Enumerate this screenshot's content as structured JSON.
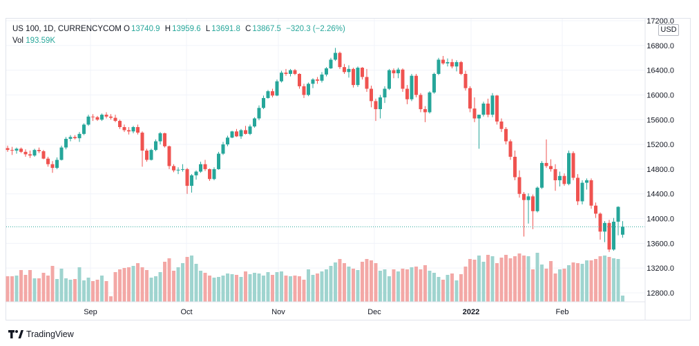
{
  "caption": "",
  "legend": {
    "symbol": "US 100, 1D, CURRENCYCOM",
    "open_label": "O",
    "open": "13740.9",
    "high_label": "H",
    "high": "13959.6",
    "low_label": "L",
    "low": "13691.8",
    "close_label": "C",
    "close": "13867.5",
    "change": "−320.3 (−2.26%)",
    "vol_label": "Vol",
    "vol": "193.59K"
  },
  "currency": "USD",
  "brand": "TradingView",
  "colors": {
    "up": "#26a69a",
    "down": "#ef5350",
    "vol_up": "#9fd4cf",
    "vol_down": "#f3a8a6"
  },
  "chart_data": {
    "type": "candlestick",
    "y_ticks": [
      "17200.0",
      "16800.0",
      "16400.0",
      "16000.0",
      "15600.0",
      "15200.0",
      "14800.0",
      "14400.0",
      "14000.0",
      "13600.0",
      "13200.0",
      "12800.0"
    ],
    "ylim": [
      12600,
      17300
    ],
    "x_labels": [
      "Sep",
      "Oct",
      "Nov",
      "Dec",
      "2022",
      "Feb"
    ],
    "last_close": 13867.5,
    "ohlc": [
      [
        15140,
        15180,
        15080,
        15110
      ],
      [
        15110,
        15160,
        15030,
        15100
      ],
      [
        15100,
        15150,
        15050,
        15130
      ],
      [
        15130,
        15150,
        15060,
        15080
      ],
      [
        15080,
        15120,
        15000,
        15040
      ],
      [
        15040,
        15100,
        14980,
        15020
      ],
      [
        15020,
        15130,
        15000,
        15110
      ],
      [
        15110,
        15150,
        15060,
        15090
      ],
      [
        15090,
        15110,
        14960,
        14970
      ],
      [
        14970,
        15000,
        14840,
        14880
      ],
      [
        14880,
        14930,
        14740,
        14820
      ],
      [
        14820,
        14990,
        14800,
        14950
      ],
      [
        14950,
        15180,
        14940,
        15150
      ],
      [
        15150,
        15320,
        15120,
        15290
      ],
      [
        15290,
        15350,
        15250,
        15320
      ],
      [
        15320,
        15350,
        15280,
        15300
      ],
      [
        15300,
        15400,
        15240,
        15370
      ],
      [
        15370,
        15540,
        15350,
        15520
      ],
      [
        15520,
        15680,
        15500,
        15650
      ],
      [
        15650,
        15690,
        15580,
        15640
      ],
      [
        15640,
        15660,
        15580,
        15600
      ],
      [
        15600,
        15700,
        15580,
        15680
      ],
      [
        15680,
        15720,
        15620,
        15650
      ],
      [
        15650,
        15690,
        15600,
        15630
      ],
      [
        15630,
        15680,
        15560,
        15580
      ],
      [
        15580,
        15600,
        15450,
        15480
      ],
      [
        15480,
        15520,
        15400,
        15430
      ],
      [
        15430,
        15480,
        15360,
        15410
      ],
      [
        15410,
        15500,
        15380,
        15480
      ],
      [
        15480,
        15520,
        15360,
        15390
      ],
      [
        15390,
        15410,
        14840,
        15100
      ],
      [
        15100,
        15130,
        14920,
        14950
      ],
      [
        14950,
        15130,
        14940,
        15110
      ],
      [
        15110,
        15280,
        15090,
        15250
      ],
      [
        15250,
        15400,
        15200,
        15380
      ],
      [
        15380,
        15390,
        15150,
        15170
      ],
      [
        15170,
        15180,
        14800,
        14850
      ],
      [
        14850,
        14880,
        14750,
        14780
      ],
      [
        14780,
        14830,
        14720,
        14790
      ],
      [
        14790,
        14880,
        14760,
        14800
      ],
      [
        14800,
        14820,
        14400,
        14530
      ],
      [
        14530,
        14720,
        14420,
        14700
      ],
      [
        14700,
        14780,
        14630,
        14760
      ],
      [
        14760,
        14920,
        14740,
        14880
      ],
      [
        14880,
        14950,
        14770,
        14800
      ],
      [
        14800,
        14810,
        14610,
        14640
      ],
      [
        14640,
        14830,
        14620,
        14800
      ],
      [
        14800,
        15080,
        14790,
        15050
      ],
      [
        15050,
        15240,
        15030,
        15200
      ],
      [
        15200,
        15340,
        15170,
        15310
      ],
      [
        15310,
        15420,
        15300,
        15410
      ],
      [
        15410,
        15450,
        15320,
        15330
      ],
      [
        15330,
        15450,
        15290,
        15430
      ],
      [
        15430,
        15500,
        15360,
        15370
      ],
      [
        15370,
        15520,
        15350,
        15490
      ],
      [
        15490,
        15640,
        15470,
        15620
      ],
      [
        15620,
        15830,
        15590,
        15790
      ],
      [
        15790,
        15990,
        15770,
        15950
      ],
      [
        15950,
        16080,
        15940,
        16060
      ],
      [
        16060,
        16100,
        15960,
        15990
      ],
      [
        15990,
        16250,
        15980,
        16220
      ],
      [
        16220,
        16390,
        16200,
        16360
      ],
      [
        16360,
        16420,
        16310,
        16340
      ],
      [
        16340,
        16420,
        16300,
        16400
      ],
      [
        16400,
        16420,
        16320,
        16340
      ],
      [
        16340,
        16350,
        16100,
        16140
      ],
      [
        16140,
        16180,
        15950,
        16000
      ],
      [
        16000,
        16200,
        15980,
        16180
      ],
      [
        16180,
        16270,
        16110,
        16250
      ],
      [
        16250,
        16290,
        16180,
        16230
      ],
      [
        16230,
        16370,
        16200,
        16330
      ],
      [
        16330,
        16450,
        16300,
        16430
      ],
      [
        16430,
        16600,
        16420,
        16570
      ],
      [
        16570,
        16760,
        16550,
        16680
      ],
      [
        16680,
        16700,
        16420,
        16450
      ],
      [
        16450,
        16500,
        16340,
        16370
      ],
      [
        16370,
        16480,
        16280,
        16420
      ],
      [
        16420,
        16440,
        16120,
        16160
      ],
      [
        16160,
        16460,
        16130,
        16440
      ],
      [
        16440,
        16450,
        16250,
        16290
      ],
      [
        16290,
        16420,
        16050,
        16100
      ],
      [
        16100,
        16150,
        15800,
        15900
      ],
      [
        15900,
        15940,
        15580,
        15770
      ],
      [
        15770,
        16000,
        15620,
        15960
      ],
      [
        15960,
        16140,
        15870,
        16100
      ],
      [
        16100,
        16420,
        16080,
        16400
      ],
      [
        16400,
        16430,
        16270,
        16350
      ],
      [
        16350,
        16440,
        16270,
        16410
      ],
      [
        16410,
        16430,
        16050,
        16100
      ],
      [
        16100,
        16160,
        15850,
        15930
      ],
      [
        15930,
        16340,
        15900,
        16310
      ],
      [
        16310,
        16340,
        15960,
        16000
      ],
      [
        16000,
        16030,
        15720,
        15770
      ],
      [
        15770,
        15820,
        15560,
        15720
      ],
      [
        15720,
        16060,
        15700,
        16040
      ],
      [
        16040,
        16360,
        16020,
        16340
      ],
      [
        16340,
        16600,
        16320,
        16570
      ],
      [
        16570,
        16630,
        16490,
        16510
      ],
      [
        16510,
        16590,
        16460,
        16530
      ],
      [
        16530,
        16580,
        16430,
        16460
      ],
      [
        16460,
        16560,
        16380,
        16530
      ],
      [
        16530,
        16550,
        16320,
        16340
      ],
      [
        16340,
        16390,
        16070,
        16110
      ],
      [
        16110,
        16140,
        15720,
        15780
      ],
      [
        15780,
        15960,
        15560,
        15620
      ],
      [
        15620,
        15680,
        15130,
        15680
      ],
      [
        15680,
        15890,
        15650,
        15860
      ],
      [
        15860,
        15940,
        15640,
        15680
      ],
      [
        15680,
        16030,
        15640,
        15990
      ],
      [
        15990,
        16000,
        15520,
        15570
      ],
      [
        15570,
        15620,
        15400,
        15450
      ],
      [
        15450,
        15480,
        15200,
        15250
      ],
      [
        15250,
        15280,
        14950,
        15000
      ],
      [
        15000,
        15100,
        14620,
        14670
      ],
      [
        14670,
        14780,
        14340,
        14400
      ],
      [
        14400,
        14430,
        13710,
        14300
      ],
      [
        14300,
        14410,
        13920,
        14360
      ],
      [
        14360,
        14390,
        13830,
        14120
      ],
      [
        14120,
        14520,
        14100,
        14500
      ],
      [
        14500,
        14930,
        14480,
        14900
      ],
      [
        14900,
        15280,
        14820,
        14850
      ],
      [
        14850,
        14960,
        14760,
        14800
      ],
      [
        14800,
        14880,
        14450,
        14620
      ],
      [
        14620,
        14760,
        14520,
        14690
      ],
      [
        14690,
        14730,
        14530,
        14560
      ],
      [
        14560,
        15100,
        14540,
        15060
      ],
      [
        15060,
        15090,
        14620,
        14660
      ],
      [
        14660,
        14720,
        14220,
        14280
      ],
      [
        14280,
        14620,
        14230,
        14580
      ],
      [
        14580,
        14650,
        14470,
        14620
      ],
      [
        14620,
        14650,
        14160,
        14210
      ],
      [
        14210,
        14260,
        14010,
        14080
      ],
      [
        14080,
        14100,
        13660,
        13790
      ],
      [
        13790,
        13960,
        13620,
        13930
      ],
      [
        13930,
        13980,
        13460,
        13500
      ],
      [
        13500,
        14010,
        13480,
        13950
      ],
      [
        13950,
        14200,
        13730,
        14190
      ],
      [
        13740,
        13960,
        13690,
        13868
      ]
    ],
    "volume": [
      0.37,
      0.37,
      0.38,
      0.46,
      0.39,
      0.46,
      0.34,
      0.34,
      0.42,
      0.38,
      0.52,
      0.33,
      0.48,
      0.34,
      0.32,
      0.33,
      0.5,
      0.31,
      0.35,
      0.3,
      0.32,
      0.38,
      0.3,
      0.08,
      0.43,
      0.47,
      0.49,
      0.5,
      0.52,
      0.56,
      0.5,
      0.46,
      0.35,
      0.37,
      0.43,
      0.58,
      0.63,
      0.45,
      0.5,
      0.56,
      0.65,
      0.67,
      0.55,
      0.45,
      0.42,
      0.38,
      0.35,
      0.36,
      0.38,
      0.41,
      0.4,
      0.39,
      0.36,
      0.44,
      0.4,
      0.42,
      0.41,
      0.38,
      0.43,
      0.39,
      0.43,
      0.44,
      0.38,
      0.37,
      0.38,
      0.37,
      0.32,
      0.47,
      0.39,
      0.41,
      0.44,
      0.47,
      0.52,
      0.57,
      0.62,
      0.56,
      0.51,
      0.48,
      0.46,
      0.58,
      0.62,
      0.6,
      0.56,
      0.45,
      0.47,
      0.37,
      0.47,
      0.44,
      0.48,
      0.47,
      0.5,
      0.51,
      0.47,
      0.53,
      0.45,
      0.42,
      0.36,
      0.32,
      0.39,
      0.41,
      0.31,
      0.4,
      0.51,
      0.62,
      0.61,
      0.67,
      0.58,
      0.68,
      0.66,
      0.56,
      0.64,
      0.68,
      0.63,
      0.66,
      0.7,
      0.67,
      0.66,
      0.47,
      0.71,
      0.54,
      0.48,
      0.59,
      0.41,
      0.47,
      0.48,
      0.53,
      0.57,
      0.56,
      0.55,
      0.6,
      0.6,
      0.62,
      0.66,
      0.67,
      0.65,
      0.63,
      0.62,
      0.09
    ]
  }
}
